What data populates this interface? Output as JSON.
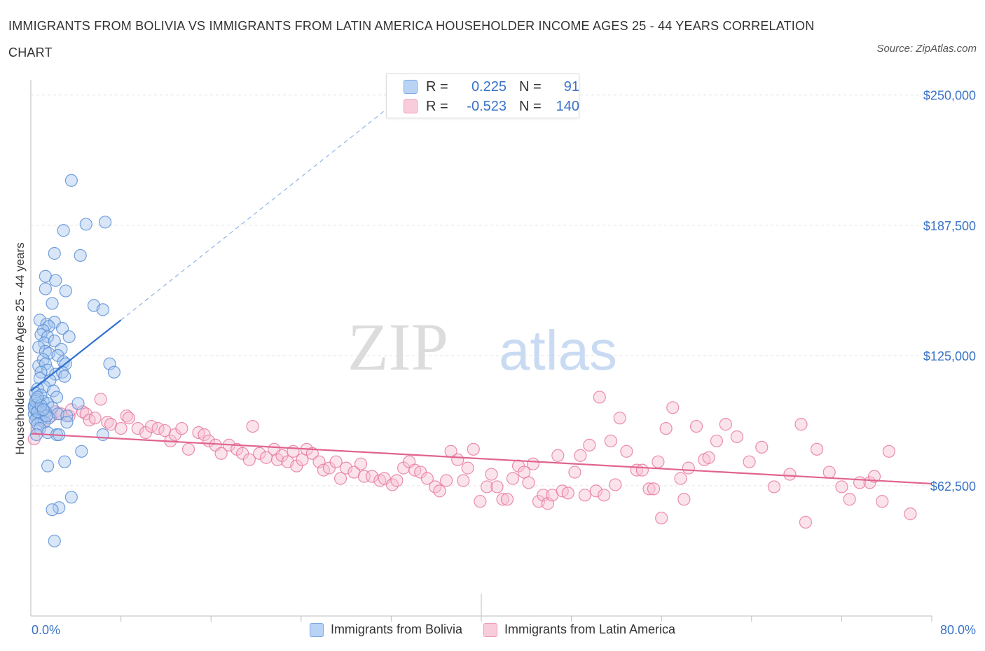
{
  "title": "IMMIGRANTS FROM BOLIVIA VS IMMIGRANTS FROM LATIN AMERICA HOUSEHOLDER INCOME AGES 25 - 44 YEARS CORRELATION CHART",
  "source": "Source: ZipAtlas.com",
  "watermark": {
    "zip": "ZIP",
    "atlas": "atlas"
  },
  "colors": {
    "blue": "#5b8fd6",
    "blue_fill": "#a9c7f0",
    "blue_line": "#2e6fd0",
    "pink": "#e8799f",
    "pink_fill": "#f6c0d2",
    "pink_line": "#e0648f",
    "axis_text": "#3a73c6",
    "grid": "#e4e4e4"
  },
  "legend_box": {
    "rows": [
      {
        "r_label": "R =",
        "r_value": "0.225",
        "n_label": "N =",
        "n_value": "91"
      },
      {
        "r_label": "R =",
        "r_value": "-0.523",
        "n_label": "N =",
        "n_value": "140"
      }
    ]
  },
  "legend": [
    {
      "label": "Immigrants from Bolivia"
    },
    {
      "label": "Immigrants from Latin America"
    }
  ],
  "chart_data": {
    "type": "scatter",
    "title": "IMMIGRANTS FROM BOLIVIA VS IMMIGRANTS FROM LATIN AMERICA HOUSEHOLDER INCOME AGES 25 - 44 YEARS CORRELATION CHART",
    "xlabel": "",
    "ylabel": "Householder Income Ages 25 - 44 years",
    "x_tick_labels": [
      "0.0%",
      "80.0%"
    ],
    "y_tick_labels": [
      "$62,500",
      "$125,000",
      "$187,500",
      "$250,000"
    ],
    "y_ticks": [
      62500,
      125000,
      187500,
      250000
    ],
    "xlim": [
      0,
      80
    ],
    "ylim": [
      0,
      262000
    ],
    "grid": true,
    "legend_position": "bottom",
    "series": [
      {
        "name": "Immigrants from Bolivia",
        "R": 0.225,
        "N": 91,
        "trend": {
          "x": [
            0,
            8
          ],
          "y": [
            108000,
            142000
          ],
          "extended_to": [
            32,
            245000
          ]
        },
        "points": [
          [
            3.6,
            209000
          ],
          [
            4.9,
            188000
          ],
          [
            6.6,
            189000
          ],
          [
            2.9,
            185000
          ],
          [
            4.4,
            173000
          ],
          [
            2.1,
            174000
          ],
          [
            1.3,
            163000
          ],
          [
            2.2,
            161000
          ],
          [
            1.3,
            157000
          ],
          [
            3.1,
            156000
          ],
          [
            1.9,
            150000
          ],
          [
            5.6,
            149000
          ],
          [
            6.4,
            147000
          ],
          [
            0.8,
            142000
          ],
          [
            1.4,
            140000
          ],
          [
            2.1,
            141000
          ],
          [
            1.6,
            139000
          ],
          [
            1.1,
            137000
          ],
          [
            2.8,
            138000
          ],
          [
            0.9,
            135000
          ],
          [
            1.5,
            134000
          ],
          [
            3.4,
            134000
          ],
          [
            1.2,
            131000
          ],
          [
            2.1,
            132000
          ],
          [
            0.7,
            129000
          ],
          [
            1.3,
            127000
          ],
          [
            1.6,
            126000
          ],
          [
            2.7,
            128000
          ],
          [
            2.4,
            125000
          ],
          [
            1.1,
            123000
          ],
          [
            2.9,
            122000
          ],
          [
            0.7,
            120000
          ],
          [
            1.3,
            121000
          ],
          [
            3.1,
            121000
          ],
          [
            7.0,
            121000
          ],
          [
            1.5,
            118000
          ],
          [
            0.9,
            117000
          ],
          [
            2.2,
            116000
          ],
          [
            2.8,
            117000
          ],
          [
            7.4,
            117000
          ],
          [
            0.8,
            114000
          ],
          [
            1.7,
            113000
          ],
          [
            3.0,
            115000
          ],
          [
            1.2,
            110000
          ],
          [
            0.6,
            109000
          ],
          [
            2.0,
            108000
          ],
          [
            0.4,
            107000
          ],
          [
            0.9,
            106000
          ],
          [
            2.3,
            105000
          ],
          [
            0.5,
            104000
          ],
          [
            1.1,
            103000
          ],
          [
            0.6,
            102000
          ],
          [
            1.5,
            102000
          ],
          [
            4.2,
            102000
          ],
          [
            0.3,
            101000
          ],
          [
            0.7,
            100000
          ],
          [
            1.9,
            100000
          ],
          [
            0.4,
            99000
          ],
          [
            0.9,
            98000
          ],
          [
            1.3,
            98000
          ],
          [
            2.4,
            97000
          ],
          [
            0.3,
            97000
          ],
          [
            0.7,
            96000
          ],
          [
            3.2,
            96000
          ],
          [
            0.5,
            95000
          ],
          [
            1.6,
            95000
          ],
          [
            0.9,
            94000
          ],
          [
            0.4,
            94000
          ],
          [
            1.2,
            93000
          ],
          [
            3.2,
            93000
          ],
          [
            0.6,
            92000
          ],
          [
            0.8,
            90000
          ],
          [
            1.5,
            88000
          ],
          [
            0.5,
            87000
          ],
          [
            2.3,
            87000
          ],
          [
            2.5,
            87000
          ],
          [
            6.4,
            87000
          ],
          [
            4.5,
            79000
          ],
          [
            3.0,
            74000
          ],
          [
            1.5,
            72000
          ],
          [
            3.6,
            57000
          ],
          [
            2.5,
            52000
          ],
          [
            1.9,
            51000
          ],
          [
            2.1,
            36000
          ],
          [
            0.3,
            100000
          ],
          [
            0.4,
            103000
          ],
          [
            0.6,
            98000
          ],
          [
            0.9,
            101000
          ],
          [
            1.4,
            96000
          ],
          [
            0.6,
            105000
          ],
          [
            1.1,
            99000
          ]
        ]
      },
      {
        "name": "Immigrants from Latin America",
        "R": -0.523,
        "N": 140,
        "trend": {
          "x": [
            0,
            80
          ],
          "y": [
            87500,
            63500
          ]
        },
        "points": [
          [
            0.3,
            85000
          ],
          [
            0.6,
            90000
          ],
          [
            0.9,
            97000
          ],
          [
            1.2,
            94000
          ],
          [
            1.8,
            96000
          ],
          [
            2.2,
            98000
          ],
          [
            2.7,
            97000
          ],
          [
            3.4,
            96000
          ],
          [
            3.6,
            99000
          ],
          [
            4.6,
            98000
          ],
          [
            4.9,
            97000
          ],
          [
            5.2,
            94000
          ],
          [
            5.7,
            95000
          ],
          [
            6.2,
            104000
          ],
          [
            6.8,
            93000
          ],
          [
            7.1,
            92000
          ],
          [
            8.0,
            90000
          ],
          [
            8.5,
            96000
          ],
          [
            8.7,
            95000
          ],
          [
            9.5,
            90000
          ],
          [
            10.2,
            88000
          ],
          [
            10.7,
            91000
          ],
          [
            11.3,
            90000
          ],
          [
            11.9,
            89000
          ],
          [
            12.4,
            84000
          ],
          [
            12.8,
            87000
          ],
          [
            13.4,
            90000
          ],
          [
            14.0,
            80000
          ],
          [
            14.9,
            88000
          ],
          [
            15.4,
            87000
          ],
          [
            15.8,
            84000
          ],
          [
            16.4,
            82000
          ],
          [
            16.9,
            78000
          ],
          [
            17.6,
            82000
          ],
          [
            18.3,
            80000
          ],
          [
            18.8,
            78000
          ],
          [
            19.4,
            75000
          ],
          [
            19.7,
            91000
          ],
          [
            20.3,
            78000
          ],
          [
            20.9,
            76000
          ],
          [
            21.6,
            80000
          ],
          [
            21.9,
            75000
          ],
          [
            22.3,
            77000
          ],
          [
            22.8,
            74000
          ],
          [
            23.3,
            79000
          ],
          [
            23.6,
            72000
          ],
          [
            24.1,
            75000
          ],
          [
            24.5,
            80000
          ],
          [
            25.0,
            78000
          ],
          [
            25.6,
            74000
          ],
          [
            26.0,
            70000
          ],
          [
            26.5,
            71000
          ],
          [
            27.1,
            74000
          ],
          [
            27.5,
            66000
          ],
          [
            28.0,
            71000
          ],
          [
            28.7,
            69000
          ],
          [
            29.3,
            73000
          ],
          [
            29.6,
            67000
          ],
          [
            30.3,
            67000
          ],
          [
            31.0,
            65000
          ],
          [
            31.4,
            66000
          ],
          [
            32.1,
            63000
          ],
          [
            32.5,
            65000
          ],
          [
            33.1,
            71000
          ],
          [
            33.6,
            74000
          ],
          [
            34.1,
            70000
          ],
          [
            34.6,
            69000
          ],
          [
            35.2,
            66000
          ],
          [
            35.9,
            62000
          ],
          [
            36.3,
            60000
          ],
          [
            36.9,
            65000
          ],
          [
            37.3,
            79000
          ],
          [
            37.9,
            75000
          ],
          [
            38.4,
            65000
          ],
          [
            38.8,
            71000
          ],
          [
            39.3,
            80000
          ],
          [
            39.9,
            55000
          ],
          [
            40.5,
            62000
          ],
          [
            40.9,
            68000
          ],
          [
            41.4,
            62000
          ],
          [
            41.9,
            56000
          ],
          [
            42.3,
            56000
          ],
          [
            42.8,
            66000
          ],
          [
            43.3,
            72000
          ],
          [
            43.8,
            69000
          ],
          [
            44.2,
            64000
          ],
          [
            44.6,
            73000
          ],
          [
            45.1,
            55000
          ],
          [
            45.5,
            58000
          ],
          [
            45.9,
            54000
          ],
          [
            46.3,
            58000
          ],
          [
            46.8,
            77000
          ],
          [
            47.2,
            60000
          ],
          [
            47.7,
            59000
          ],
          [
            48.3,
            69000
          ],
          [
            48.8,
            77000
          ],
          [
            49.2,
            58000
          ],
          [
            49.6,
            82000
          ],
          [
            50.2,
            60000
          ],
          [
            50.5,
            105000
          ],
          [
            50.9,
            58000
          ],
          [
            51.5,
            84000
          ],
          [
            51.9,
            63000
          ],
          [
            52.3,
            95000
          ],
          [
            52.9,
            79000
          ],
          [
            53.8,
            70000
          ],
          [
            54.3,
            70000
          ],
          [
            54.9,
            61000
          ],
          [
            55.3,
            61000
          ],
          [
            55.7,
            74000
          ],
          [
            56.0,
            47000
          ],
          [
            56.4,
            90000
          ],
          [
            57.0,
            100000
          ],
          [
            57.7,
            66000
          ],
          [
            58.0,
            56000
          ],
          [
            58.4,
            71000
          ],
          [
            59.1,
            91000
          ],
          [
            59.8,
            75000
          ],
          [
            60.2,
            76000
          ],
          [
            60.9,
            84000
          ],
          [
            61.7,
            92000
          ],
          [
            62.7,
            86000
          ],
          [
            63.8,
            74000
          ],
          [
            64.9,
            81000
          ],
          [
            66.0,
            62000
          ],
          [
            67.4,
            68000
          ],
          [
            68.4,
            92000
          ],
          [
            68.8,
            45000
          ],
          [
            69.8,
            80000
          ],
          [
            70.9,
            69000
          ],
          [
            72.0,
            62000
          ],
          [
            72.7,
            56000
          ],
          [
            73.6,
            64000
          ],
          [
            74.5,
            64000
          ],
          [
            74.9,
            67000
          ],
          [
            75.6,
            55000
          ],
          [
            76.2,
            79000
          ],
          [
            78.1,
            49000
          ]
        ]
      }
    ]
  }
}
